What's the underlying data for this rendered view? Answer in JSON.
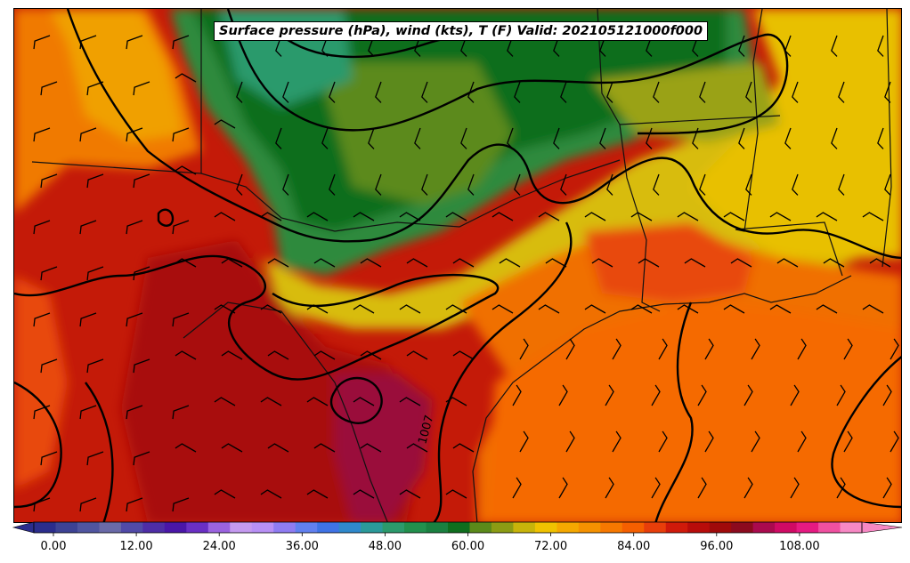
{
  "title": "Surface pressure (hPa), wind (kts), T (F) Valid: 202105121000f000",
  "contour_label": "1007",
  "colorbar": {
    "tick_labels": [
      "0.00",
      "12.00",
      "24.00",
      "36.00",
      "48.00",
      "60.00",
      "72.00",
      "84.00",
      "96.00",
      "108.00"
    ],
    "colors": [
      "#2b2d8c",
      "#3d4294",
      "#5055a0",
      "#6a6aa8",
      "#514aa8",
      "#4e2da6",
      "#4a16a8",
      "#6a2fc4",
      "#9b63e0",
      "#c59af0",
      "#b890f5",
      "#8f7cf2",
      "#6180f0",
      "#3f73e6",
      "#2f89cc",
      "#2b9a9a",
      "#2c9a6c",
      "#22904d",
      "#1a8040",
      "#0f6e1e",
      "#5b8a1a",
      "#8c9c14",
      "#c8b40a",
      "#f0c200",
      "#f5a800",
      "#f59100",
      "#f77800",
      "#f55f00",
      "#e83e0a",
      "#d01a0a",
      "#b80c0a",
      "#a00a0a",
      "#8c0a1e",
      "#aa0a4e",
      "#d00a64",
      "#e61a82",
      "#f050a0",
      "#f788c4"
    ]
  }
}
